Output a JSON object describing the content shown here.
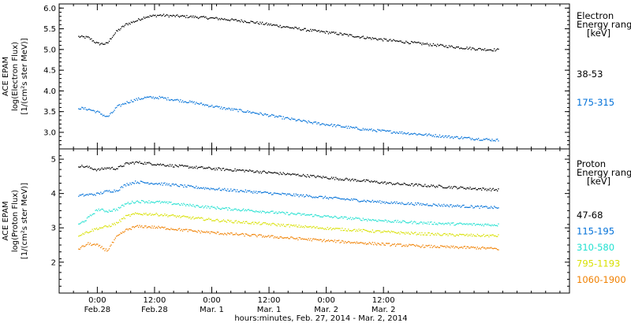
{
  "chart_data": [
    {
      "type": "scatter",
      "panel": "top",
      "ylabel": [
        "ACE EPAM",
        "log(Electron Flux)",
        "[1/(cm²s ster MeV)]"
      ],
      "ylim": [
        2.6,
        6.1
      ],
      "yticks": [
        3.0,
        3.5,
        4.0,
        4.5,
        5.0,
        5.5,
        6.0
      ],
      "ytick_labels": [
        "3.0",
        "3.5",
        "4.0",
        "4.5",
        "5.0",
        "5.5",
        "6.0"
      ],
      "legend_title": [
        "Electron",
        "Energy ranges",
        "[keV]"
      ],
      "series": [
        {
          "name": "38-53",
          "color": "#000000",
          "x": [
            0,
            2,
            4,
            6,
            7,
            8,
            10,
            12,
            14,
            17,
            20,
            24,
            30,
            36,
            42,
            48,
            54,
            60,
            66,
            72,
            78,
            84,
            88
          ],
          "y": [
            5.32,
            5.3,
            5.15,
            5.15,
            5.32,
            5.45,
            5.62,
            5.7,
            5.8,
            5.84,
            5.82,
            5.8,
            5.75,
            5.68,
            5.58,
            5.48,
            5.4,
            5.3,
            5.22,
            5.15,
            5.08,
            5.02,
            5.0
          ]
        },
        {
          "name": "175-315",
          "color": "#0070d8",
          "x": [
            0,
            2,
            4,
            6,
            7,
            8,
            10,
            12,
            14,
            17,
            20,
            24,
            30,
            36,
            42,
            48,
            54,
            60,
            66,
            72,
            78,
            84,
            88
          ],
          "y": [
            3.6,
            3.57,
            3.5,
            3.38,
            3.48,
            3.62,
            3.73,
            3.8,
            3.85,
            3.85,
            3.8,
            3.73,
            3.6,
            3.5,
            3.38,
            3.26,
            3.17,
            3.08,
            3.02,
            2.96,
            2.9,
            2.85,
            2.82
          ]
        }
      ]
    },
    {
      "type": "scatter",
      "panel": "bottom",
      "ylabel": [
        "ACE EPAM",
        "log(Proton Flux)",
        "[1/(cm²s ster MeV)]"
      ],
      "ylim": [
        1.1,
        5.3
      ],
      "yticks": [
        2,
        3,
        4,
        5
      ],
      "ytick_labels": [
        "2",
        "3",
        "4",
        "5"
      ],
      "legend_title": [
        "Proton",
        "Energy ranges",
        "[keV]"
      ],
      "series": [
        {
          "name": "47-68",
          "color": "#000000",
          "x": [
            0,
            2,
            4,
            6,
            8,
            10,
            12,
            14,
            17,
            20,
            24,
            30,
            36,
            42,
            48,
            54,
            60,
            66,
            72,
            78,
            84,
            88
          ],
          "y": [
            4.82,
            4.78,
            4.7,
            4.76,
            4.74,
            4.88,
            4.92,
            4.9,
            4.86,
            4.82,
            4.78,
            4.72,
            4.67,
            4.6,
            4.53,
            4.45,
            4.38,
            4.3,
            4.25,
            4.2,
            4.15,
            4.12
          ]
        },
        {
          "name": "115-195",
          "color": "#0070d8",
          "x": [
            0,
            2,
            4,
            6,
            8,
            10,
            12,
            14,
            17,
            20,
            24,
            30,
            36,
            42,
            48,
            54,
            60,
            66,
            72,
            78,
            84,
            88
          ],
          "y": [
            3.95,
            3.98,
            4.0,
            4.08,
            4.1,
            4.28,
            4.35,
            4.33,
            4.3,
            4.26,
            4.2,
            4.13,
            4.07,
            4.0,
            3.94,
            3.87,
            3.8,
            3.74,
            3.7,
            3.66,
            3.62,
            3.6
          ]
        },
        {
          "name": "310-580",
          "color": "#20e0d0",
          "x": [
            0,
            2,
            4,
            6,
            8,
            10,
            12,
            14,
            17,
            20,
            24,
            30,
            36,
            42,
            48,
            54,
            60,
            66,
            72,
            78,
            84,
            88
          ],
          "y": [
            3.1,
            3.3,
            3.55,
            3.5,
            3.55,
            3.72,
            3.78,
            3.78,
            3.76,
            3.72,
            3.66,
            3.58,
            3.52,
            3.45,
            3.39,
            3.32,
            3.26,
            3.2,
            3.16,
            3.13,
            3.11,
            3.1
          ]
        },
        {
          "name": "795-1193",
          "color": "#d8e000",
          "x": [
            0,
            2,
            4,
            6,
            8,
            10,
            12,
            14,
            17,
            20,
            24,
            30,
            36,
            42,
            48,
            54,
            60,
            66,
            72,
            78,
            84,
            88
          ],
          "y": [
            2.8,
            2.9,
            3.0,
            3.05,
            3.15,
            3.35,
            3.42,
            3.42,
            3.4,
            3.36,
            3.3,
            3.22,
            3.16,
            3.1,
            3.04,
            2.98,
            2.93,
            2.88,
            2.84,
            2.81,
            2.79,
            2.78
          ]
        },
        {
          "name": "1060-1900",
          "color": "#f08000",
          "x": [
            0,
            2,
            4,
            6,
            8,
            10,
            12,
            14,
            17,
            20,
            24,
            30,
            36,
            42,
            48,
            54,
            60,
            66,
            72,
            78,
            84,
            88
          ],
          "y": [
            2.4,
            2.55,
            2.5,
            2.35,
            2.75,
            2.95,
            3.05,
            3.05,
            3.02,
            2.98,
            2.92,
            2.85,
            2.8,
            2.74,
            2.68,
            2.62,
            2.57,
            2.52,
            2.48,
            2.45,
            2.43,
            2.4
          ]
        }
      ]
    }
  ],
  "x_axis": {
    "range_hours": [
      -4,
      103
    ],
    "ticks": [
      {
        "hour": 4,
        "time": "0:00",
        "date": "Feb.28"
      },
      {
        "hour": 16,
        "time": "12:00",
        "date": "Feb.28"
      },
      {
        "hour": 28,
        "time": "0:00",
        "date": "Mar. 1"
      },
      {
        "hour": 40,
        "time": "12:00",
        "date": "Mar. 1"
      },
      {
        "hour": 52,
        "time": "0:00",
        "date": "Mar. 2"
      },
      {
        "hour": 64,
        "time": "12:00",
        "date": "Mar. 2"
      }
    ],
    "label": "hours:minutes, Feb. 27, 2014 - Mar.  2, 2014"
  }
}
